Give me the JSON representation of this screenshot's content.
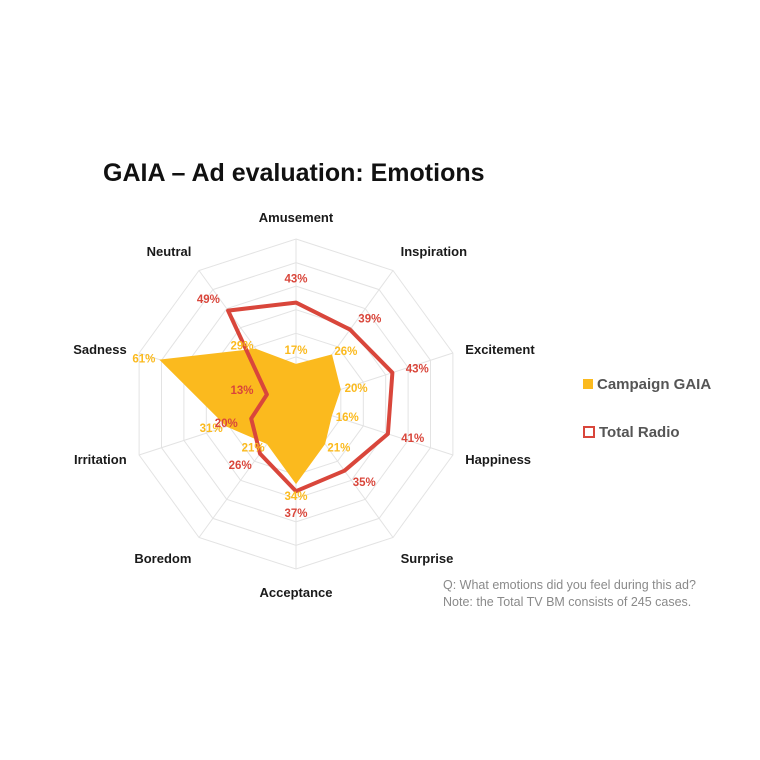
{
  "chart_data": {
    "type": "radar",
    "title": "GAIA – Ad evaluation: Emotions",
    "axes": [
      "Amusement",
      "Inspiration",
      "Excitement",
      "Happiness",
      "Surprise",
      "Acceptance",
      "Boredom",
      "Irritation",
      "Sadness",
      "Neutral"
    ],
    "rmax": 70,
    "grid": true,
    "legend_position": "right",
    "series": [
      {
        "name": "Campaign GAIA",
        "style": "filled",
        "color": "#FBBA1E",
        "values": [
          17,
          26,
          20,
          16,
          21,
          34,
          21,
          31,
          61,
          29
        ],
        "labels": [
          "17%",
          "26%",
          "20%",
          "16%",
          "21%",
          "34%",
          "21%",
          "31%",
          "61%",
          "29%"
        ]
      },
      {
        "name": "Total Radio",
        "style": "line",
        "color": "#D9463B",
        "values": [
          43,
          39,
          43,
          41,
          35,
          37,
          26,
          20,
          13,
          49
        ],
        "labels": [
          "43%",
          "39%",
          "43%",
          "41%",
          "35%",
          "37%",
          "26%",
          "20%",
          "13%",
          "49%"
        ]
      }
    ]
  },
  "note": {
    "line1": "Q: What emotions did you feel during this ad?",
    "line2": "Note: the Total TV BM consists of 245 cases."
  }
}
